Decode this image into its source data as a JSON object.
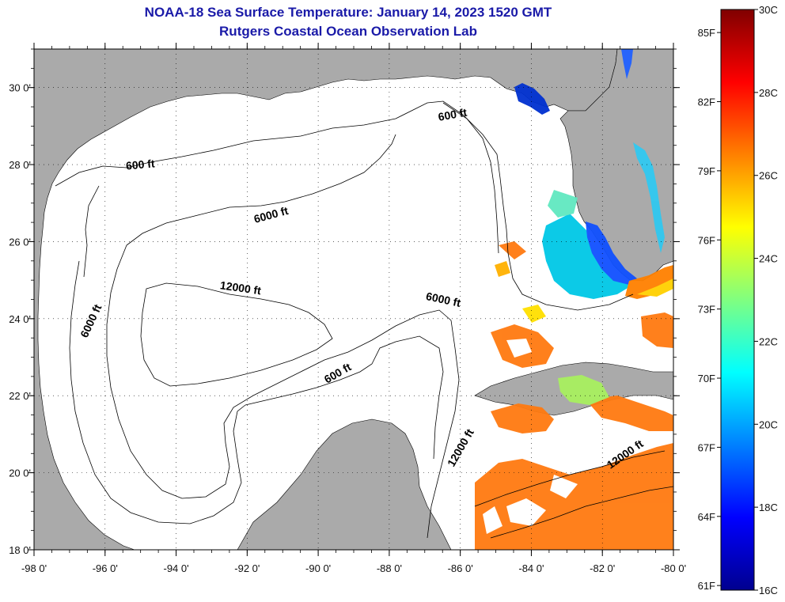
{
  "title": "NOAA-18 Sea Surface Temperature:  January 14, 2023 1520 GMT",
  "subtitle": "Rutgers Coastal Ocean Observation Lab",
  "map": {
    "lon_range": [
      -98,
      -80
    ],
    "lat_range": [
      18,
      31
    ],
    "lon_ticks": [
      "-98 0'",
      "-96 0'",
      "-94 0'",
      "-92 0'",
      "-90 0'",
      "-88 0'",
      "-86 0'",
      "-84 0'",
      "-82 0'",
      "-80 0'"
    ],
    "lat_ticks": [
      "18 0'",
      "20 0'",
      "22 0'",
      "24 0'",
      "26 0'",
      "28 0'",
      "30 0'"
    ],
    "grid": "dotted",
    "land_color": "#aaaaaa",
    "ocean_color": "#ffffff",
    "contour_labels": [
      {
        "text": "600 ft",
        "lon": -86.2,
        "lat": 29.2,
        "angle": -10
      },
      {
        "text": "600 ft",
        "lon": -95.0,
        "lat": 27.9,
        "angle": -5
      },
      {
        "text": "6000 ft",
        "lon": -91.3,
        "lat": 26.6,
        "angle": -15
      },
      {
        "text": "12000 ft",
        "lon": -92.2,
        "lat": 24.7,
        "angle": 8
      },
      {
        "text": "6000 ft",
        "lon": -86.5,
        "lat": 24.4,
        "angle": 12
      },
      {
        "text": "6000 ft",
        "lon": -96.3,
        "lat": 23.9,
        "angle": -65
      },
      {
        "text": "600 ft",
        "lon": -89.4,
        "lat": 22.5,
        "angle": -30
      },
      {
        "text": "12000 ft",
        "lon": -85.9,
        "lat": 20.6,
        "angle": -60
      },
      {
        "text": "12000 ft",
        "lon": -81.3,
        "lat": 20.4,
        "angle": -35
      }
    ]
  },
  "colorbar": {
    "left_labels": [
      "61F",
      "64F",
      "67F",
      "70F",
      "73F",
      "76F",
      "79F",
      "82F",
      "85F"
    ],
    "right_labels": [
      "16C",
      "18C",
      "20C",
      "22C",
      "24C",
      "26C",
      "28C",
      "30C"
    ],
    "colors": [
      "#00008f",
      "#0000ff",
      "#0080ff",
      "#00ffff",
      "#80ff80",
      "#ffff00",
      "#ff8000",
      "#ff0000",
      "#800000"
    ]
  }
}
